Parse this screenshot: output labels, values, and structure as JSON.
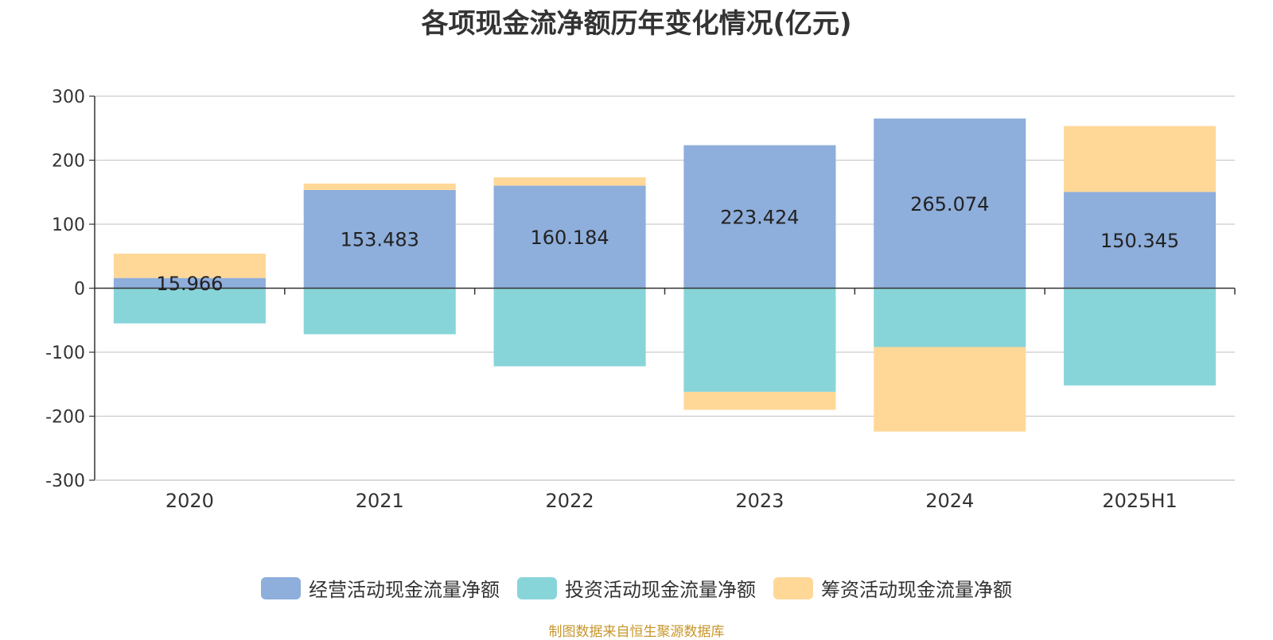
{
  "chart_data": {
    "type": "bar",
    "stacked": true,
    "title": "各项现金流净额历年变化情况(亿元)",
    "xlabel": "",
    "ylabel": "",
    "ylim": [
      -300,
      300
    ],
    "yticks": [
      300,
      200,
      100,
      0,
      -100,
      -200,
      -300
    ],
    "grid": true,
    "legend_position": "bottom",
    "categories": [
      "2020",
      "2021",
      "2022",
      "2023",
      "2024",
      "2025H1"
    ],
    "series": [
      {
        "name": "经营活动现金流量净额",
        "color": "#8eaedb",
        "values": [
          15.966,
          153.483,
          160.184,
          223.424,
          265.074,
          150.345
        ],
        "labels": [
          "15.966",
          "153.483",
          "160.184",
          "223.424",
          "265.074",
          "150.345"
        ]
      },
      {
        "name": "投资活动现金流量净额",
        "color": "#88d5d9",
        "values": [
          -55,
          -72,
          -122,
          -162,
          -92,
          -152
        ]
      },
      {
        "name": "筹资活动现金流量净额",
        "color": "#ffd898",
        "values": [
          38,
          10,
          13,
          -28,
          -132,
          103
        ]
      }
    ]
  },
  "source": "制图数据来自恒生聚源数据库"
}
